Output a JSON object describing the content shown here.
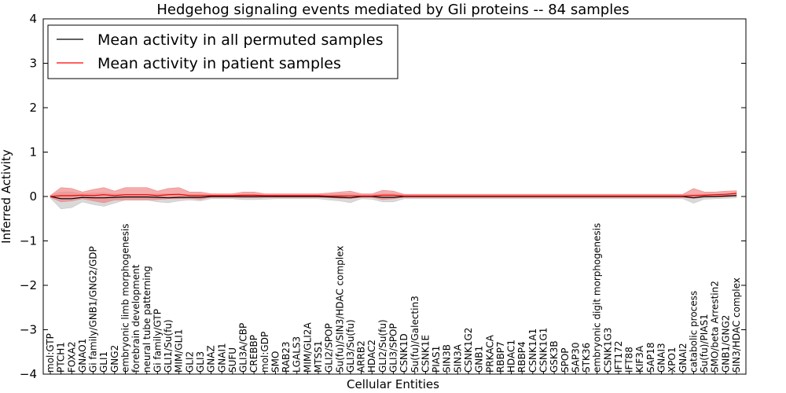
{
  "chart_data": {
    "type": "line",
    "title": "Hedgehog signaling events mediated by Gli proteins -- 84 samples",
    "xlabel": "Cellular Entities",
    "ylabel": "Inferred Activity",
    "ylim": [
      -4,
      4
    ],
    "yticks": [
      "4",
      "3",
      "2",
      "1",
      "0",
      "−1",
      "−2",
      "−3",
      "−4"
    ],
    "grid": false,
    "legend_position": "top-left",
    "legend": [
      {
        "label": "Mean activity in all permuted samples",
        "color": "#000000"
      },
      {
        "label": "Mean activity in patient samples",
        "color": "#ff0000"
      }
    ],
    "colors": {
      "permuted_line": "#000000",
      "permuted_band": "#d0d0d0",
      "patient_line": "#ff0000",
      "patient_band": "#f08080"
    },
    "categories": [
      "mol:GTP",
      "PTCH1",
      "FOXA2",
      "GNAO1",
      "Gi family/GNB1/GNG2/GDP",
      "GLI1",
      "GNG2",
      "embryonic limb morphogenesis",
      "forebrain development",
      "neural tube patterning",
      "Gi family/GTP",
      "GLI1/Su(fu)",
      "MIM/GLI1",
      "GLI2",
      "GLI3",
      "GNAZ",
      "GNAI1",
      "SUFU",
      "GLI3A/CBP",
      "CREBBP",
      "mol:GDP",
      "SMO",
      "RAB23",
      "LGALS3",
      "MIM/GLI2A",
      "MTSS1",
      "GLI2/SPOP",
      "Su(fu)/SIN3/HDAC complex",
      "GLI3/Su(fu)",
      "ARRB2",
      "HDAC2",
      "GLI2/Su(fu)",
      "GLI3/SPOP",
      "CSNK1D",
      "Su(fu)/Galectin3",
      "CSNK1E",
      "PIAS1",
      "SIN3B",
      "SIN3A",
      "CSNK1G2",
      "GNB1",
      "PRKACA",
      "RBBP7",
      "HDAC1",
      "RBBP4",
      "CSNK1A1",
      "CSNK1G1",
      "GSK3B",
      "SPOP",
      "SAP30",
      "STK36",
      "embryonic digit morphogenesis",
      "CSNK1G3",
      "IFT172",
      "IFT88",
      "KIF3A",
      "SAP18",
      "GNAI3",
      "XPO1",
      "GNAI2",
      "catabolic process",
      "Su(fu)/PIAS1",
      "SMO/beta Arrestin2",
      "GNB1/GNG2",
      "SIN3/HDAC complex"
    ],
    "series": [
      {
        "name": "Mean activity in all permuted samples",
        "values": [
          0,
          -0.05,
          -0.05,
          -0.02,
          -0.03,
          -0.03,
          -0.02,
          -0.01,
          -0.01,
          -0.01,
          -0.02,
          -0.03,
          -0.02,
          -0.02,
          -0.02,
          0,
          0,
          0,
          0,
          0,
          0,
          0,
          0,
          0,
          0,
          0,
          -0.01,
          -0.02,
          -0.03,
          0,
          0,
          -0.02,
          -0.02,
          0,
          0,
          0,
          0,
          0,
          0,
          0,
          0,
          0,
          0,
          0,
          0,
          0,
          0,
          0,
          0,
          0,
          0,
          0,
          0,
          0,
          0,
          0,
          0,
          0,
          0,
          0,
          -0.03,
          0,
          0,
          0.01,
          0.02
        ],
        "band_low": [
          -0.03,
          -0.28,
          -0.25,
          -0.12,
          -0.18,
          -0.22,
          -0.15,
          -0.08,
          -0.08,
          -0.08,
          -0.12,
          -0.14,
          -0.1,
          -0.08,
          -0.1,
          -0.05,
          -0.05,
          -0.05,
          -0.07,
          -0.07,
          -0.06,
          -0.05,
          -0.05,
          -0.05,
          -0.05,
          -0.05,
          -0.08,
          -0.1,
          -0.14,
          -0.05,
          -0.06,
          -0.12,
          -0.12,
          -0.05,
          -0.05,
          -0.05,
          -0.05,
          -0.05,
          -0.05,
          -0.05,
          -0.05,
          -0.05,
          -0.05,
          -0.05,
          -0.05,
          -0.05,
          -0.05,
          -0.05,
          -0.05,
          -0.05,
          -0.05,
          -0.05,
          -0.05,
          -0.05,
          -0.05,
          -0.05,
          -0.05,
          -0.05,
          -0.05,
          -0.05,
          -0.15,
          -0.06,
          -0.05,
          -0.04,
          -0.03
        ],
        "band_high": [
          0.03,
          0.1,
          0.1,
          0.06,
          0.08,
          0.08,
          0.06,
          0.05,
          0.05,
          0.05,
          0.06,
          0.06,
          0.05,
          0.05,
          0.05,
          0.04,
          0.04,
          0.04,
          0.05,
          0.05,
          0.04,
          0.04,
          0.04,
          0.04,
          0.04,
          0.04,
          0.05,
          0.06,
          0.06,
          0.04,
          0.04,
          0.06,
          0.06,
          0.04,
          0.04,
          0.04,
          0.04,
          0.04,
          0.04,
          0.04,
          0.04,
          0.04,
          0.04,
          0.04,
          0.04,
          0.04,
          0.04,
          0.04,
          0.04,
          0.04,
          0.04,
          0.04,
          0.04,
          0.04,
          0.04,
          0.04,
          0.04,
          0.04,
          0.04,
          0.04,
          0.05,
          0.05,
          0.05,
          0.06,
          0.06
        ]
      },
      {
        "name": "Mean activity in patient samples",
        "values": [
          0,
          0.02,
          0.02,
          0.03,
          0.02,
          0.04,
          0.02,
          0.04,
          0.04,
          0.04,
          0.02,
          0.04,
          0.05,
          0.02,
          0.02,
          0.02,
          0.02,
          0.02,
          0.03,
          0.03,
          0.02,
          0.02,
          0.02,
          0.02,
          0.02,
          0.02,
          0.01,
          0.01,
          0.01,
          0.01,
          0.01,
          0.03,
          0.03,
          0.01,
          0.01,
          0.01,
          0.01,
          0.01,
          0.01,
          0.01,
          0.01,
          0.01,
          0.01,
          0.01,
          0.01,
          0.01,
          0.01,
          0.01,
          0.01,
          0.01,
          0.01,
          0.01,
          0.01,
          0.01,
          0.01,
          0.01,
          0.01,
          0.01,
          0.01,
          0.01,
          0.02,
          0.03,
          0.04,
          0.05,
          0.07
        ],
        "band_low": [
          -0.02,
          -0.12,
          -0.1,
          -0.05,
          -0.1,
          -0.14,
          -0.08,
          -0.08,
          -0.08,
          -0.08,
          -0.07,
          -0.05,
          -0.05,
          -0.04,
          -0.06,
          -0.02,
          -0.02,
          -0.02,
          -0.03,
          -0.03,
          -0.02,
          -0.02,
          -0.02,
          -0.02,
          -0.02,
          -0.02,
          -0.02,
          -0.04,
          -0.04,
          -0.02,
          -0.02,
          -0.07,
          -0.05,
          -0.02,
          -0.02,
          -0.02,
          -0.02,
          -0.02,
          -0.02,
          -0.02,
          -0.02,
          -0.02,
          -0.02,
          -0.02,
          -0.02,
          -0.02,
          -0.02,
          -0.02,
          -0.02,
          -0.02,
          -0.02,
          -0.02,
          -0.02,
          -0.02,
          -0.02,
          -0.02,
          -0.02,
          -0.02,
          -0.02,
          -0.02,
          -0.04,
          -0.02,
          -0.01,
          -0.01,
          0.01
        ],
        "band_high": [
          0.02,
          0.2,
          0.18,
          0.1,
          0.16,
          0.2,
          0.12,
          0.2,
          0.2,
          0.2,
          0.12,
          0.18,
          0.2,
          0.1,
          0.1,
          0.06,
          0.06,
          0.06,
          0.1,
          0.1,
          0.06,
          0.06,
          0.06,
          0.06,
          0.06,
          0.06,
          0.08,
          0.1,
          0.12,
          0.06,
          0.06,
          0.14,
          0.12,
          0.05,
          0.05,
          0.05,
          0.05,
          0.05,
          0.05,
          0.05,
          0.05,
          0.05,
          0.05,
          0.05,
          0.05,
          0.05,
          0.05,
          0.05,
          0.05,
          0.05,
          0.05,
          0.05,
          0.05,
          0.05,
          0.05,
          0.05,
          0.05,
          0.05,
          0.05,
          0.05,
          0.18,
          0.1,
          0.1,
          0.12,
          0.13
        ]
      }
    ]
  }
}
